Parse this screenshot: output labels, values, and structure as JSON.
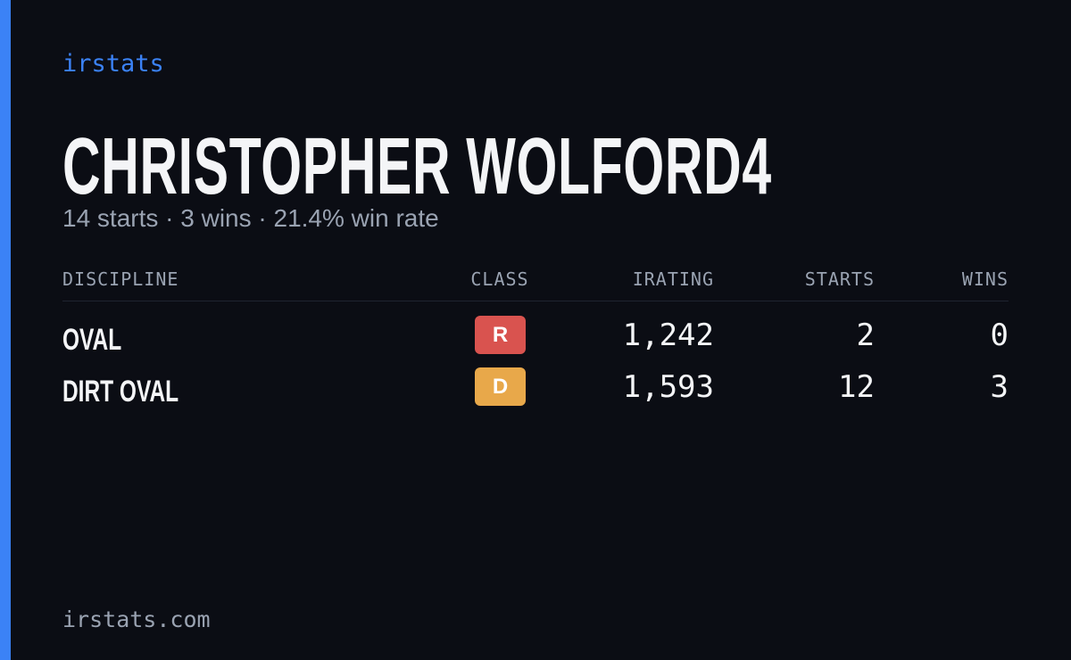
{
  "brand": "irstats",
  "title": "CHRISTOPHER WOLFORD4",
  "subtitle": "14 starts · 3 wins · 21.4% win rate",
  "table": {
    "columns": [
      "DISCIPLINE",
      "CLASS",
      "IRATING",
      "STARTS",
      "WINS"
    ],
    "rows": [
      [
        "OVAL",
        "R",
        "1,242",
        "2",
        "0"
      ],
      [
        "DIRT OVAL",
        "D",
        "1,593",
        "12",
        "3"
      ]
    ]
  },
  "footer": "irstats.com"
}
